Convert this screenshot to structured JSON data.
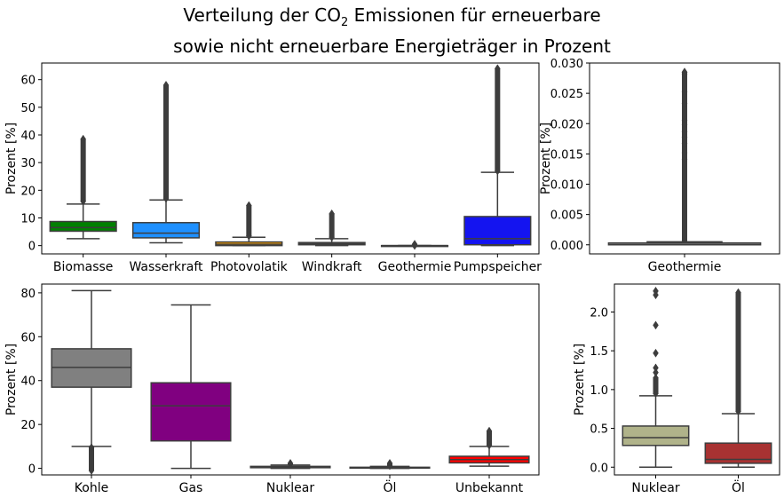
{
  "title": {
    "line1_prefix": "Verteilung der CO",
    "line1_sub": "2",
    "line1_suffix": " Emissionen für erneuerbare",
    "line2": "sowie nicht erneuerbare Energieträger in Prozent"
  },
  "chart_data": [
    {
      "type": "box",
      "id": "renewables",
      "ylabel": "Prozent [%]",
      "ylim": [
        -3,
        66
      ],
      "yticks": [
        0,
        10,
        20,
        30,
        40,
        50,
        60
      ],
      "grid": false,
      "categories": [
        "Biomasse",
        "Wasserkraft",
        "Photovolatik",
        "Windkraft",
        "Geothermie",
        "Pumpspeicher"
      ],
      "colors": [
        "#008000",
        "#1e90ff",
        "#ffa500",
        "#808080",
        "#808080",
        "#1414f0"
      ],
      "boxes": [
        {
          "whislo": 2.5,
          "q1": 5.2,
          "med": 6.5,
          "q3": 8.7,
          "whishi": 15,
          "fliers_hi": [
            16,
            38.5
          ]
        },
        {
          "whislo": 1,
          "q1": 2.8,
          "med": 4.5,
          "q3": 8.3,
          "whishi": 16.5,
          "fliers_hi": [
            17,
            58
          ]
        },
        {
          "whislo": 0,
          "q1": 0,
          "med": 0.5,
          "q3": 1.3,
          "whishi": 3,
          "fliers_hi": [
            3.5,
            14.5
          ]
        },
        {
          "whislo": 0,
          "q1": 0.3,
          "med": 0.7,
          "q3": 1.1,
          "whishi": 2.5,
          "fliers_hi": [
            3,
            11.5
          ]
        },
        {
          "whislo": 0,
          "q1": 0,
          "med": 0,
          "q3": 0,
          "whishi": 0,
          "fliers_hi": [
            0,
            0.5
          ]
        },
        {
          "whislo": 0,
          "q1": 0.3,
          "med": 2.5,
          "q3": 10.5,
          "whishi": 26.5,
          "fliers_hi": [
            27,
            64
          ]
        }
      ]
    },
    {
      "type": "box",
      "id": "geothermie",
      "ylabel": "Prozent [%]",
      "ylim": [
        -0.0015,
        0.03
      ],
      "yticks": [
        0.0,
        0.005,
        0.01,
        0.015,
        0.02,
        0.025,
        0.03
      ],
      "ytick_labels": [
        "0.000",
        "0.005",
        "0.010",
        "0.015",
        "0.020",
        "0.025",
        "0.030"
      ],
      "grid": false,
      "categories": [
        "Geothermie"
      ],
      "colors": [
        "#808080"
      ],
      "boxes": [
        {
          "whislo": 0,
          "q1": 0,
          "med": 0,
          "q3": 0.0003,
          "whishi": 0.0005,
          "fliers_hi": [
            0.0006,
            0.0285
          ]
        }
      ],
      "sparse_fliers": [
        0.0285,
        0.0282,
        0.0252,
        0.0233,
        0.0205,
        0.0198,
        0.0186,
        0.0178,
        0.0167,
        0.0152,
        0.0141
      ]
    },
    {
      "type": "box",
      "id": "fossil",
      "ylabel": "Prozent [%]",
      "ylim": [
        -3,
        84
      ],
      "yticks": [
        0,
        20,
        40,
        60,
        80
      ],
      "grid": false,
      "categories": [
        "Kohle",
        "Gas",
        "Nuklear",
        "Öl",
        "Unbekannt"
      ],
      "colors": [
        "#808080",
        "#800080",
        "#808080",
        "#808080",
        "#ff0000"
      ],
      "boxes": [
        {
          "whislo": 10,
          "q1": 37,
          "med": 46,
          "q3": 54.5,
          "whishi": 81,
          "fliers_lo": [
            -1,
            9.5
          ]
        },
        {
          "whislo": 0,
          "q1": 12.5,
          "med": 28.5,
          "q3": 39,
          "whishi": 74.5
        },
        {
          "whislo": 0,
          "q1": 0.3,
          "med": 0.5,
          "q3": 0.9,
          "whishi": 1.5,
          "fliers_hi": [
            1.8,
            2.3
          ]
        },
        {
          "whislo": 0,
          "q1": 0.1,
          "med": 0.2,
          "q3": 0.5,
          "whishi": 0.9,
          "fliers_hi": [
            1.2,
            2.3
          ]
        },
        {
          "whislo": 1,
          "q1": 2.5,
          "med": 4,
          "q3": 5.5,
          "whishi": 10,
          "fliers_hi": [
            10.5,
            17
          ]
        }
      ]
    },
    {
      "type": "box",
      "id": "nuklear-oel",
      "ylabel": "Prozent [%]",
      "ylim": [
        -0.1,
        2.36
      ],
      "yticks": [
        0.0,
        0.5,
        1.0,
        1.5,
        2.0
      ],
      "ytick_labels": [
        "0.0",
        "0.5",
        "1.0",
        "1.5",
        "2.0"
      ],
      "grid": false,
      "categories": [
        "Nuklear",
        "Öl"
      ],
      "colors": [
        "#b0b38a",
        "#a83232"
      ],
      "boxes": [
        {
          "whislo": 0,
          "q1": 0.28,
          "med": 0.38,
          "q3": 0.53,
          "whishi": 0.92,
          "fliers_hi": [
            0.95,
            1.15
          ]
        },
        {
          "whislo": 0,
          "q1": 0.05,
          "med": 0.1,
          "q3": 0.31,
          "whishi": 0.69,
          "fliers_hi": [
            0.72,
            2.25
          ]
        }
      ],
      "sparse_fliers_by_box": [
        [
          2.27,
          2.22,
          1.83,
          1.47,
          1.28,
          1.22
        ],
        []
      ]
    }
  ]
}
